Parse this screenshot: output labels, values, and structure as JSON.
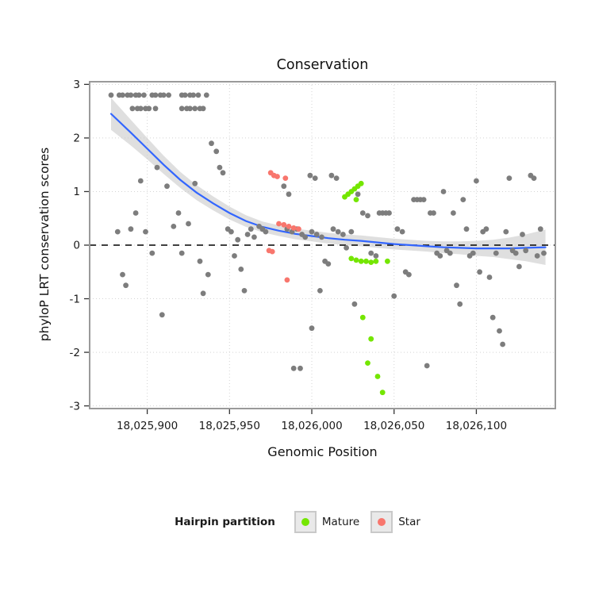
{
  "title": "Conservation",
  "xlabel": "Genomic Position",
  "ylabel": "phyloP LRT conservation scores",
  "legend": {
    "title": "Hairpin partition",
    "items": [
      {
        "label": "Mature",
        "color": "#74e600"
      },
      {
        "label": "Star",
        "color": "#f8766d"
      }
    ]
  },
  "chart_data": {
    "type": "scatter",
    "title": "Conservation",
    "xlabel": "Genomic Position",
    "ylabel": "phyloP LRT conservation scores",
    "xlim": [
      18025865,
      18026148
    ],
    "ylim": [
      -3.05,
      3.05
    ],
    "grid": true,
    "legend_position": "bottom",
    "x_ticks": [
      {
        "value": 18025900,
        "label": "18,025,900"
      },
      {
        "value": 18025950,
        "label": "18,025,950"
      },
      {
        "value": 18026000,
        "label": "18,026,000"
      },
      {
        "value": 18026050,
        "label": "18,026,050"
      },
      {
        "value": 18026100,
        "label": "18,026,100"
      }
    ],
    "y_ticks": [
      {
        "value": 3,
        "label": "3"
      },
      {
        "value": 2,
        "label": "2"
      },
      {
        "value": 1,
        "label": "1"
      },
      {
        "value": 0,
        "label": "0"
      },
      {
        "value": -1,
        "label": "-1"
      },
      {
        "value": -2,
        "label": "-2"
      },
      {
        "value": -3,
        "label": "-3"
      }
    ],
    "colors": {
      "other": "#7d7d7d",
      "mature": "#74e600",
      "star": "#f8766d",
      "smooth_line": "#3366ff",
      "band": "#c9c9c9",
      "zero_line": "#000000",
      "grid": "#d4d4d4",
      "panel_border": "#9a9a9a"
    },
    "zero_reference_y": 0,
    "smooth": {
      "x": [
        18025878,
        18025890,
        18025900,
        18025910,
        18025920,
        18025930,
        18025940,
        18025950,
        18025960,
        18025970,
        18025980,
        18025990,
        18026000,
        18026010,
        18026020,
        18026030,
        18026040,
        18026050,
        18026060,
        18026070,
        18026080,
        18026090,
        18026100,
        18026110,
        18026120,
        18026130,
        18026142
      ],
      "y": [
        2.45,
        2.1,
        1.8,
        1.5,
        1.22,
        0.98,
        0.78,
        0.6,
        0.45,
        0.34,
        0.27,
        0.21,
        0.17,
        0.13,
        0.1,
        0.08,
        0.05,
        0.02,
        0.0,
        -0.02,
        -0.04,
        -0.05,
        -0.06,
        -0.06,
        -0.06,
        -0.05,
        -0.04
      ],
      "half_width": [
        0.3,
        0.24,
        0.2,
        0.17,
        0.15,
        0.14,
        0.13,
        0.12,
        0.11,
        0.1,
        0.1,
        0.1,
        0.1,
        0.1,
        0.1,
        0.1,
        0.1,
        0.1,
        0.1,
        0.1,
        0.11,
        0.12,
        0.14,
        0.16,
        0.2,
        0.25,
        0.33
      ]
    },
    "points": {
      "other": [
        [
          18025878,
          2.8
        ],
        [
          18025883,
          2.8
        ],
        [
          18025885,
          2.8
        ],
        [
          18025888,
          2.8
        ],
        [
          18025890,
          2.8
        ],
        [
          18025893,
          2.8
        ],
        [
          18025895,
          2.8
        ],
        [
          18025898,
          2.8
        ],
        [
          18025903,
          2.8
        ],
        [
          18025905,
          2.8
        ],
        [
          18025908,
          2.8
        ],
        [
          18025910,
          2.8
        ],
        [
          18025913,
          2.8
        ],
        [
          18025921,
          2.8
        ],
        [
          18025923,
          2.8
        ],
        [
          18025926,
          2.8
        ],
        [
          18025928,
          2.8
        ],
        [
          18025931,
          2.8
        ],
        [
          18025936,
          2.8
        ],
        [
          18025891,
          2.55
        ],
        [
          18025894,
          2.55
        ],
        [
          18025896,
          2.55
        ],
        [
          18025899,
          2.55
        ],
        [
          18025901,
          2.55
        ],
        [
          18025905,
          2.55
        ],
        [
          18025921,
          2.55
        ],
        [
          18025924,
          2.55
        ],
        [
          18025926,
          2.55
        ],
        [
          18025929,
          2.55
        ],
        [
          18025932,
          2.55
        ],
        [
          18025934,
          2.55
        ],
        [
          18025882,
          0.25
        ],
        [
          18025885,
          -0.55
        ],
        [
          18025887,
          -0.75
        ],
        [
          18025890,
          0.3
        ],
        [
          18025893,
          0.6
        ],
        [
          18025896,
          1.2
        ],
        [
          18025899,
          0.25
        ],
        [
          18025903,
          -0.15
        ],
        [
          18025906,
          1.45
        ],
        [
          18025909,
          -1.3
        ],
        [
          18025912,
          1.1
        ],
        [
          18025916,
          0.35
        ],
        [
          18025919,
          0.6
        ],
        [
          18025921,
          -0.15
        ],
        [
          18025925,
          0.4
        ],
        [
          18025929,
          1.15
        ],
        [
          18025932,
          -0.3
        ],
        [
          18025934,
          -0.9
        ],
        [
          18025937,
          -0.55
        ],
        [
          18025939,
          1.9
        ],
        [
          18025942,
          1.75
        ],
        [
          18025944,
          1.45
        ],
        [
          18025946,
          1.35
        ],
        [
          18025949,
          0.3
        ],
        [
          18025951,
          0.25
        ],
        [
          18025953,
          -0.2
        ],
        [
          18025955,
          0.1
        ],
        [
          18025957,
          -0.45
        ],
        [
          18025959,
          -0.85
        ],
        [
          18025961,
          0.2
        ],
        [
          18025963,
          0.3
        ],
        [
          18025965,
          0.15
        ],
        [
          18025968,
          0.35
        ],
        [
          18025970,
          0.3
        ],
        [
          18025972,
          0.25
        ],
        [
          18025983,
          1.1
        ],
        [
          18025986,
          0.95
        ],
        [
          18025989,
          -2.3
        ],
        [
          18025993,
          -2.3
        ],
        [
          18025985,
          0.3
        ],
        [
          18025988,
          0.25
        ],
        [
          18025991,
          0.3
        ],
        [
          18025994,
          0.2
        ],
        [
          18025996,
          0.15
        ],
        [
          18025999,
          1.3
        ],
        [
          18026002,
          1.25
        ],
        [
          18026000,
          0.25
        ],
        [
          18026003,
          0.2
        ],
        [
          18026006,
          0.15
        ],
        [
          18026008,
          -0.3
        ],
        [
          18026010,
          -0.35
        ],
        [
          18026000,
          -1.55
        ],
        [
          18026005,
          -0.85
        ],
        [
          18026012,
          1.3
        ],
        [
          18026015,
          1.25
        ],
        [
          18026013,
          0.3
        ],
        [
          18026016,
          0.25
        ],
        [
          18026019,
          0.2
        ],
        [
          18026021,
          -0.05
        ],
        [
          18026024,
          0.25
        ],
        [
          18026026,
          -1.1
        ],
        [
          18026028,
          0.95
        ],
        [
          18026031,
          0.6
        ],
        [
          18026034,
          0.55
        ],
        [
          18026036,
          -0.15
        ],
        [
          18026039,
          -0.2
        ],
        [
          18026041,
          0.6
        ],
        [
          18026043,
          0.6
        ],
        [
          18026045,
          0.6
        ],
        [
          18026047,
          0.6
        ],
        [
          18026050,
          -0.95
        ],
        [
          18026052,
          0.3
        ],
        [
          18026055,
          0.25
        ],
        [
          18026057,
          -0.5
        ],
        [
          18026059,
          -0.55
        ],
        [
          18026062,
          0.85
        ],
        [
          18026064,
          0.85
        ],
        [
          18026066,
          0.85
        ],
        [
          18026068,
          0.85
        ],
        [
          18026070,
          -2.25
        ],
        [
          18026072,
          0.6
        ],
        [
          18026074,
          0.6
        ],
        [
          18026076,
          -0.15
        ],
        [
          18026078,
          -0.2
        ],
        [
          18026080,
          1.0
        ],
        [
          18026082,
          -0.1
        ],
        [
          18026084,
          -0.15
        ],
        [
          18026086,
          0.6
        ],
        [
          18026088,
          -0.75
        ],
        [
          18026090,
          -1.1
        ],
        [
          18026092,
          0.85
        ],
        [
          18026094,
          0.3
        ],
        [
          18026096,
          -0.2
        ],
        [
          18026098,
          -0.15
        ],
        [
          18026100,
          1.2
        ],
        [
          18026102,
          -0.5
        ],
        [
          18026104,
          0.25
        ],
        [
          18026106,
          0.3
        ],
        [
          18026108,
          -0.6
        ],
        [
          18026110,
          -1.35
        ],
        [
          18026112,
          -0.15
        ],
        [
          18026114,
          -1.6
        ],
        [
          18026116,
          -1.85
        ],
        [
          18026118,
          0.25
        ],
        [
          18026120,
          1.25
        ],
        [
          18026122,
          -0.1
        ],
        [
          18026124,
          -0.15
        ],
        [
          18026126,
          -0.4
        ],
        [
          18026128,
          0.2
        ],
        [
          18026130,
          -0.1
        ],
        [
          18026133,
          1.3
        ],
        [
          18026135,
          1.25
        ],
        [
          18026137,
          -0.2
        ],
        [
          18026139,
          0.3
        ],
        [
          18026141,
          -0.15
        ]
      ],
      "mature": [
        [
          18026020,
          0.9
        ],
        [
          18026022,
          0.95
        ],
        [
          18026024,
          1.0
        ],
        [
          18026026,
          1.05
        ],
        [
          18026028,
          1.1
        ],
        [
          18026030,
          1.15
        ],
        [
          18026027,
          0.85
        ],
        [
          18026024,
          -0.25
        ],
        [
          18026027,
          -0.28
        ],
        [
          18026030,
          -0.3
        ],
        [
          18026033,
          -0.3
        ],
        [
          18026036,
          -0.32
        ],
        [
          18026039,
          -0.3
        ],
        [
          18026046,
          -0.3
        ],
        [
          18026031,
          -1.35
        ],
        [
          18026036,
          -1.75
        ],
        [
          18026034,
          -2.2
        ],
        [
          18026040,
          -2.45
        ],
        [
          18026043,
          -2.75
        ]
      ],
      "star": [
        [
          18025975,
          1.35
        ],
        [
          18025977,
          1.3
        ],
        [
          18025979,
          1.28
        ],
        [
          18025984,
          1.25
        ],
        [
          18025980,
          0.4
        ],
        [
          18025983,
          0.38
        ],
        [
          18025986,
          0.35
        ],
        [
          18025989,
          0.32
        ],
        [
          18025992,
          0.3
        ],
        [
          18025974,
          -0.1
        ],
        [
          18025976,
          -0.12
        ],
        [
          18025985,
          -0.65
        ]
      ]
    }
  }
}
